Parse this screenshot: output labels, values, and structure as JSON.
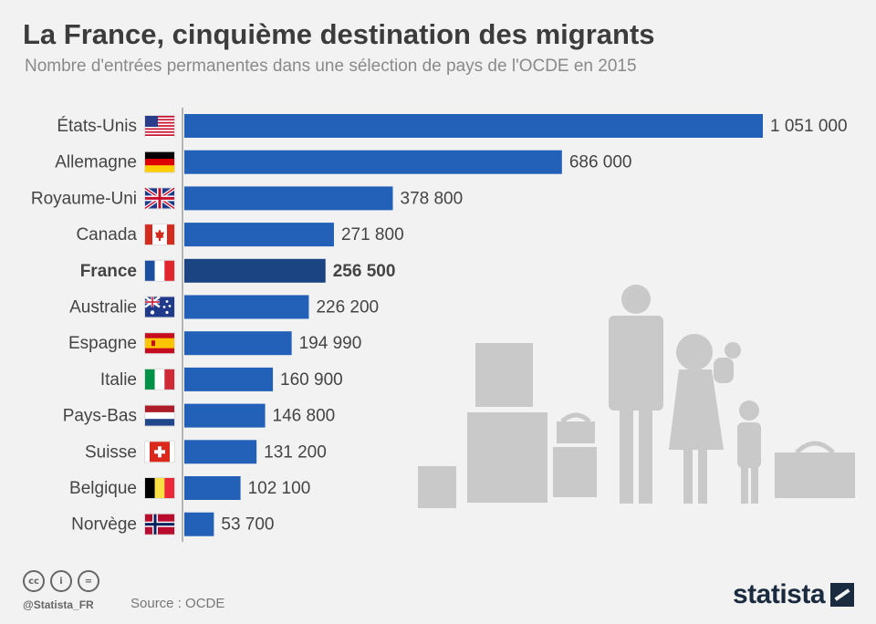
{
  "header": {
    "title": "La France, cinquième destination des migrants",
    "subtitle": "Nombre d'entrées permanentes dans une sélection de pays de l'OCDE en 2015"
  },
  "chart_data": {
    "type": "bar",
    "orientation": "horizontal",
    "title": "La France, cinquième destination des migrants",
    "subtitle": "Nombre d'entrées permanentes dans une sélection de pays de l'OCDE en 2015",
    "categories": [
      "États-Unis",
      "Allemagne",
      "Royaume-Uni",
      "Canada",
      "France",
      "Australie",
      "Espagne",
      "Italie",
      "Pays-Bas",
      "Suisse",
      "Belgique",
      "Norvège"
    ],
    "values": [
      1051000,
      686000,
      378800,
      271800,
      256500,
      226200,
      194990,
      160900,
      146800,
      131200,
      102100,
      53700
    ],
    "value_labels": [
      "1 051 000",
      "686 000",
      "378 800",
      "271 800",
      "256 500",
      "226 200",
      "194 990",
      "160 900",
      "146 800",
      "131 200",
      "102 100",
      "53 700"
    ],
    "highlight": "France",
    "colors": {
      "bar": "#2360b8",
      "highlight": "#1a4482"
    },
    "xlim": [
      0,
      1051000
    ],
    "grid": false
  },
  "flags": [
    "flag-us-icon",
    "flag-germany-icon",
    "flag-uk-icon",
    "flag-canada-icon",
    "flag-france-icon",
    "flag-australia-icon",
    "flag-spain-icon",
    "flag-italy-icon",
    "flag-netherlands-icon",
    "flag-switzerland-icon",
    "flag-belgium-icon",
    "flag-norway-icon"
  ],
  "footer": {
    "handle": "@Statista_FR",
    "source": "Source : OCDE",
    "brand": "statista"
  }
}
